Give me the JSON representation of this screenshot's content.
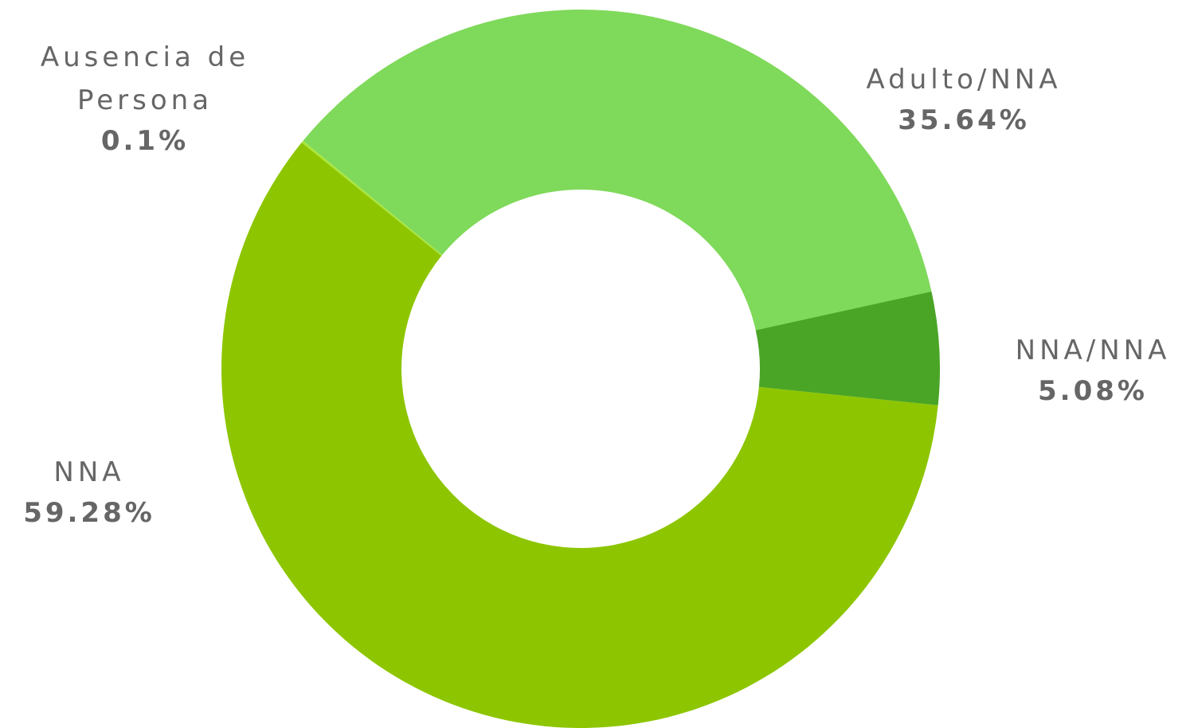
{
  "chart_data": {
    "type": "donut",
    "categories": [
      "Adulto/NNA",
      "NNA/NNA",
      "NNA",
      "Ausencia de Persona"
    ],
    "values": [
      35.64,
      5.08,
      59.28,
      0.1
    ],
    "value_labels": [
      "35.64%",
      "5.08%",
      "59.28%",
      "0.1%"
    ],
    "colors": [
      "#7fd95a",
      "#4aa526",
      "#8dc600",
      "#a8e63a"
    ]
  }
}
